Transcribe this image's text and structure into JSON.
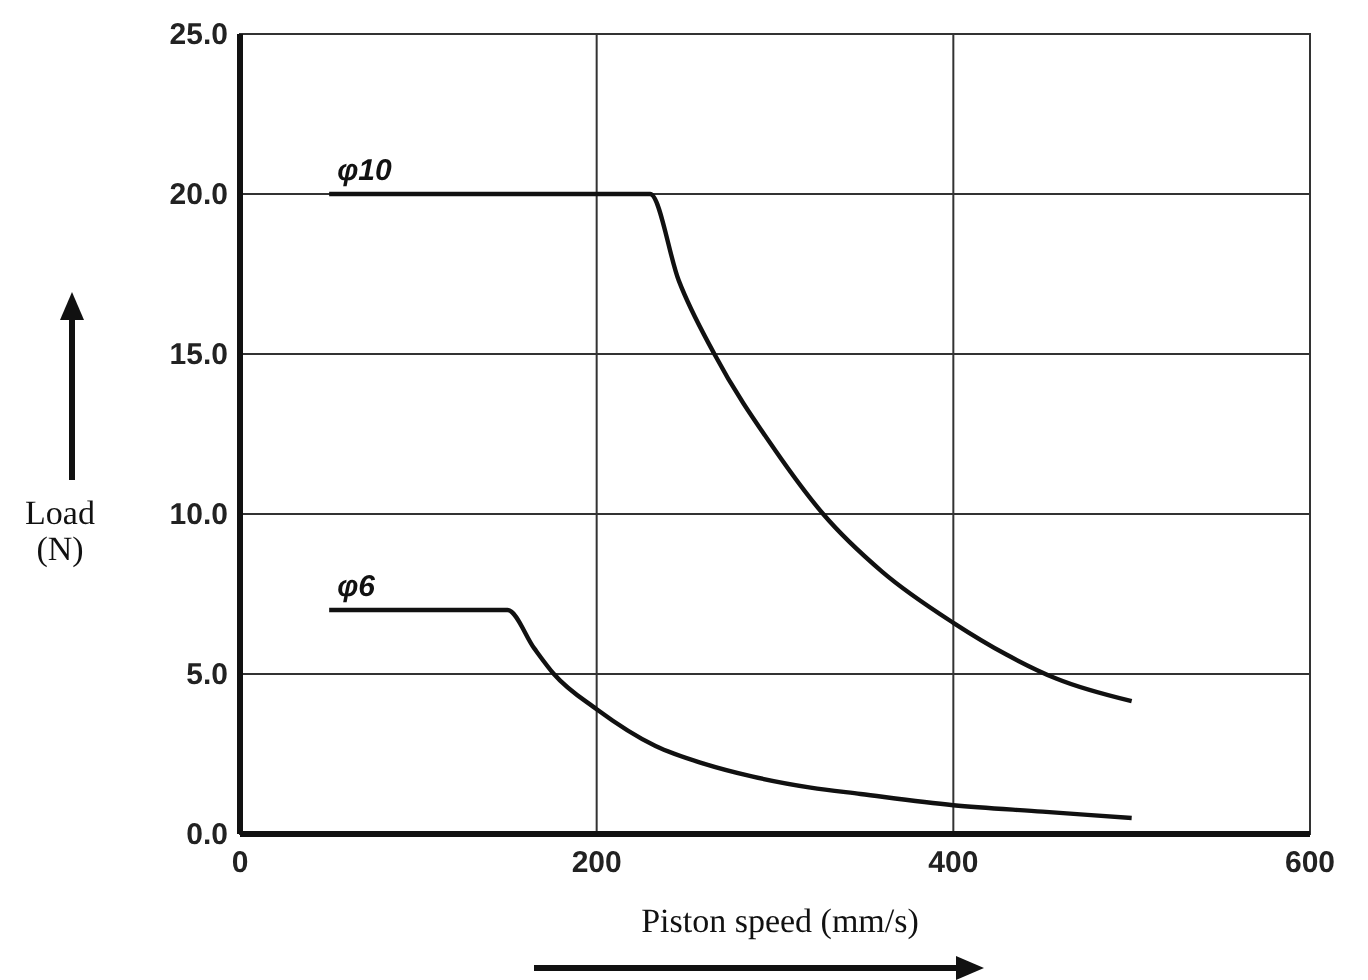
{
  "chart_data": {
    "type": "line",
    "xlabel": "Piston speed  (mm/s)",
    "ylabel": "Load\n(N)",
    "xlim": [
      0,
      600
    ],
    "xticks": [
      0,
      200,
      400,
      600
    ],
    "ylim": [
      0,
      25
    ],
    "yticks": [
      {
        "value": 0,
        "label": "0.0"
      },
      {
        "value": 5,
        "label": "5.0"
      },
      {
        "value": 10,
        "label": "10.0"
      },
      {
        "value": 15,
        "label": "15.0"
      },
      {
        "value": 20,
        "label": "20.0"
      },
      {
        "value": 25,
        "label": "25.0"
      }
    ],
    "grid": true,
    "marker": "none",
    "series": [
      {
        "name": "φ10",
        "color": "#111111",
        "x": [
          50,
          230,
          246,
          266,
          300,
          327,
          360,
          400,
          430,
          458,
          500
        ],
        "values": [
          20,
          20,
          17.3,
          15,
          12,
          10,
          8.2,
          6.6,
          5.6,
          4.85,
          4.15
        ]
      },
      {
        "name": "φ6",
        "color": "#111111",
        "x": [
          50,
          150,
          165,
          176,
          200,
          233,
          260,
          287,
          320,
          348,
          400,
          450,
          500
        ],
        "values": [
          7,
          7,
          5.8,
          5,
          3.9,
          2.75,
          2.2,
          1.8,
          1.45,
          1.25,
          0.9,
          0.7,
          0.5
        ]
      }
    ]
  }
}
